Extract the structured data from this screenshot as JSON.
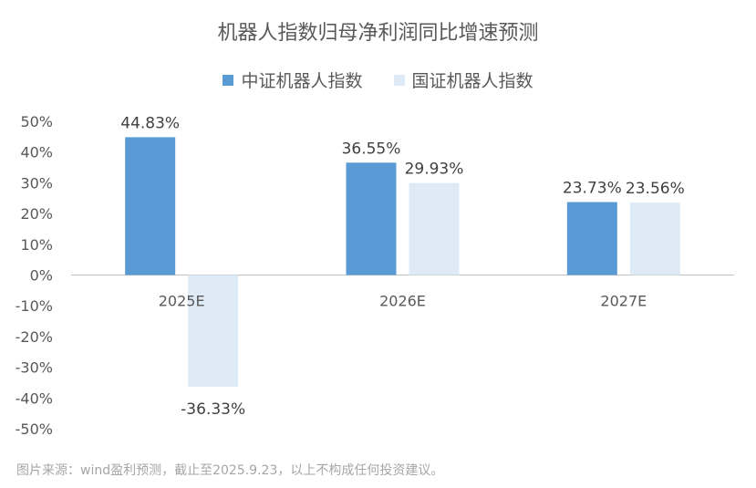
{
  "chart_data": {
    "type": "bar",
    "title": "机器人指数归母净利润同比增速预测",
    "categories": [
      "2025E",
      "2026E",
      "2027E"
    ],
    "series": [
      {
        "name": "中证机器人指数",
        "values": [
          44.83,
          36.55,
          23.73
        ],
        "labels": [
          "44.83%",
          "36.55%",
          "23.73%"
        ],
        "color": "#5b9bd5"
      },
      {
        "name": "国证机器人指数",
        "values": [
          -36.33,
          29.93,
          23.56
        ],
        "labels": [
          "-36.33%",
          "29.93%",
          "23.56%"
        ],
        "color": "#deebf7"
      }
    ],
    "yticks": [
      "50%",
      "40%",
      "30%",
      "20%",
      "10%",
      "0%",
      "-10%",
      "-20%",
      "-30%",
      "-40%",
      "-50%"
    ],
    "ylim": [
      -50,
      50
    ],
    "grid": false,
    "legend_position": "top"
  },
  "footer": {
    "source": "图片来源：wind盈利预测，截止至2025.9.23，以上不构成任何投资建议。"
  }
}
